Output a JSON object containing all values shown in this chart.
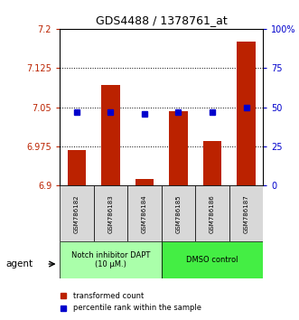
{
  "title": "GDS4488 / 1378761_at",
  "samples": [
    "GSM786182",
    "GSM786183",
    "GSM786184",
    "GSM786185",
    "GSM786186",
    "GSM786187"
  ],
  "bar_values": [
    6.968,
    7.092,
    6.912,
    7.042,
    6.985,
    7.175
  ],
  "percentile_values": [
    47,
    47,
    46,
    47,
    47,
    50
  ],
  "ylim_left": [
    6.9,
    7.2
  ],
  "ylim_right": [
    0,
    100
  ],
  "yticks_left": [
    6.9,
    6.975,
    7.05,
    7.125,
    7.2
  ],
  "ytick_labels_left": [
    "6.9",
    "6.975",
    "7.05",
    "7.125",
    "7.2"
  ],
  "yticks_right": [
    0,
    25,
    50,
    75,
    100
  ],
  "ytick_labels_right": [
    "0",
    "25",
    "50",
    "75",
    "100%"
  ],
  "hline_values": [
    6.975,
    7.05,
    7.125
  ],
  "bar_color": "#bb2200",
  "percentile_color": "#0000cc",
  "agent_groups": [
    {
      "label": "Notch inhibitor DAPT\n(10 μM.)",
      "samples": [
        0,
        1,
        2
      ],
      "color": "#aaffaa"
    },
    {
      "label": "DMSO control",
      "samples": [
        3,
        4,
        5
      ],
      "color": "#44ee44"
    }
  ],
  "agent_label": "agent",
  "legend_bar_label": "transformed count",
  "legend_pct_label": "percentile rank within the sample",
  "title_fontsize": 9,
  "tick_fontsize": 7,
  "bar_width": 0.55,
  "background_color": "#ffffff",
  "plot_bg": "#ffffff"
}
